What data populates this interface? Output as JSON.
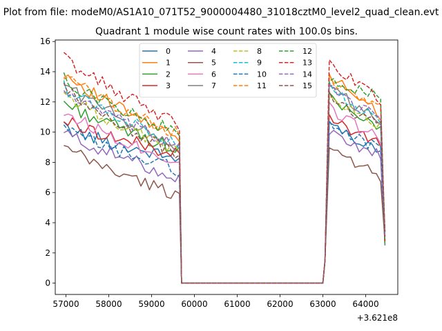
{
  "chart_data": {
    "type": "line",
    "suptitle": "Plot from file: modeM0/AS1A10_071T52_9000004480_31018cztM0_level2_quad_clean.evt",
    "title": "Quadrant 1 module wise count rates with 100.0s bins.",
    "xlabel": "",
    "ylabel": "",
    "x_offset_label": "+3.621e8",
    "xlim": [
      56750,
      64750
    ],
    "ylim": [
      -0.75,
      16.1
    ],
    "xticks": [
      57000,
      58000,
      59000,
      60000,
      61000,
      62000,
      63000,
      64000
    ],
    "xtick_labels": [
      "57000",
      "58000",
      "59000",
      "60000",
      "61000",
      "62000",
      "63000",
      "64000"
    ],
    "yticks": [
      0,
      2,
      4,
      6,
      8,
      10,
      12,
      14,
      16
    ],
    "ytick_labels": [
      "0",
      "2",
      "4",
      "6",
      "8",
      "10",
      "12",
      "14",
      "16"
    ],
    "legend_position": "upper-center",
    "segments": {
      "first": {
        "x_start": 56950,
        "x_end": 59650,
        "step": 100
      },
      "gap": {
        "x": [
          59700,
          60000,
          61000,
          62000,
          63000
        ],
        "value": 0
      },
      "second": {
        "x_start": 63050,
        "x_end": 64450,
        "step": 100
      }
    },
    "series": [
      {
        "name": "0",
        "color": "#1f77b4",
        "dash": "solid",
        "start1": 10.3,
        "end1": 8.2,
        "start2": 11.0,
        "end2": 8.5
      },
      {
        "name": "1",
        "color": "#ff7f0e",
        "dash": "solid",
        "start1": 14.0,
        "end1": 9.5,
        "start2": 14.5,
        "end2": 11.0
      },
      {
        "name": "2",
        "color": "#2ca02c",
        "dash": "solid",
        "start1": 12.0,
        "end1": 8.8,
        "start2": 13.2,
        "end2": 10.0
      },
      {
        "name": "3",
        "color": "#d62728",
        "dash": "solid",
        "start1": 10.8,
        "end1": 8.5,
        "start2": 11.5,
        "end2": 9.0
      },
      {
        "name": "4",
        "color": "#9467bd",
        "dash": "solid",
        "start1": 10.0,
        "end1": 7.0,
        "start2": 10.5,
        "end2": 8.3
      },
      {
        "name": "5",
        "color": "#8c564b",
        "dash": "solid",
        "start1": 9.0,
        "end1": 5.8,
        "start2": 9.2,
        "end2": 7.0
      },
      {
        "name": "6",
        "color": "#e377c2",
        "dash": "solid",
        "start1": 11.4,
        "end1": 8.0,
        "start2": 12.0,
        "end2": 9.5
      },
      {
        "name": "7",
        "color": "#7f7f7f",
        "dash": "solid",
        "start1": 13.3,
        "end1": 9.0,
        "start2": 13.8,
        "end2": 10.5
      },
      {
        "name": "8",
        "color": "#bcbd22",
        "dash": "dashed",
        "start1": 12.6,
        "end1": 8.7,
        "start2": 13.0,
        "end2": 10.2
      },
      {
        "name": "9",
        "color": "#17becf",
        "dash": "dashed",
        "start1": 13.0,
        "end1": 9.3,
        "start2": 13.5,
        "end2": 10.8
      },
      {
        "name": "10",
        "color": "#1f77b4",
        "dash": "dashed",
        "start1": 10.2,
        "end1": 7.5,
        "start2": 10.8,
        "end2": 8.8
      },
      {
        "name": "11",
        "color": "#ff7f0e",
        "dash": "dashed",
        "start1": 13.8,
        "end1": 9.8,
        "start2": 14.2,
        "end2": 11.3
      },
      {
        "name": "12",
        "color": "#2ca02c",
        "dash": "dashed",
        "start1": 13.5,
        "end1": 9.9,
        "start2": 14.0,
        "end2": 12.2
      },
      {
        "name": "13",
        "color": "#d62728",
        "dash": "dashed",
        "start1": 15.0,
        "end1": 10.5,
        "start2": 15.3,
        "end2": 12.0
      },
      {
        "name": "14",
        "color": "#9467bd",
        "dash": "dashed",
        "start1": 12.8,
        "end1": 9.0,
        "start2": 13.3,
        "end2": 10.8
      },
      {
        "name": "15",
        "color": "#8c564b",
        "dash": "dashed",
        "start1": 12.9,
        "end1": 8.5,
        "start2": 12.9,
        "end2": 10.3
      }
    ]
  }
}
